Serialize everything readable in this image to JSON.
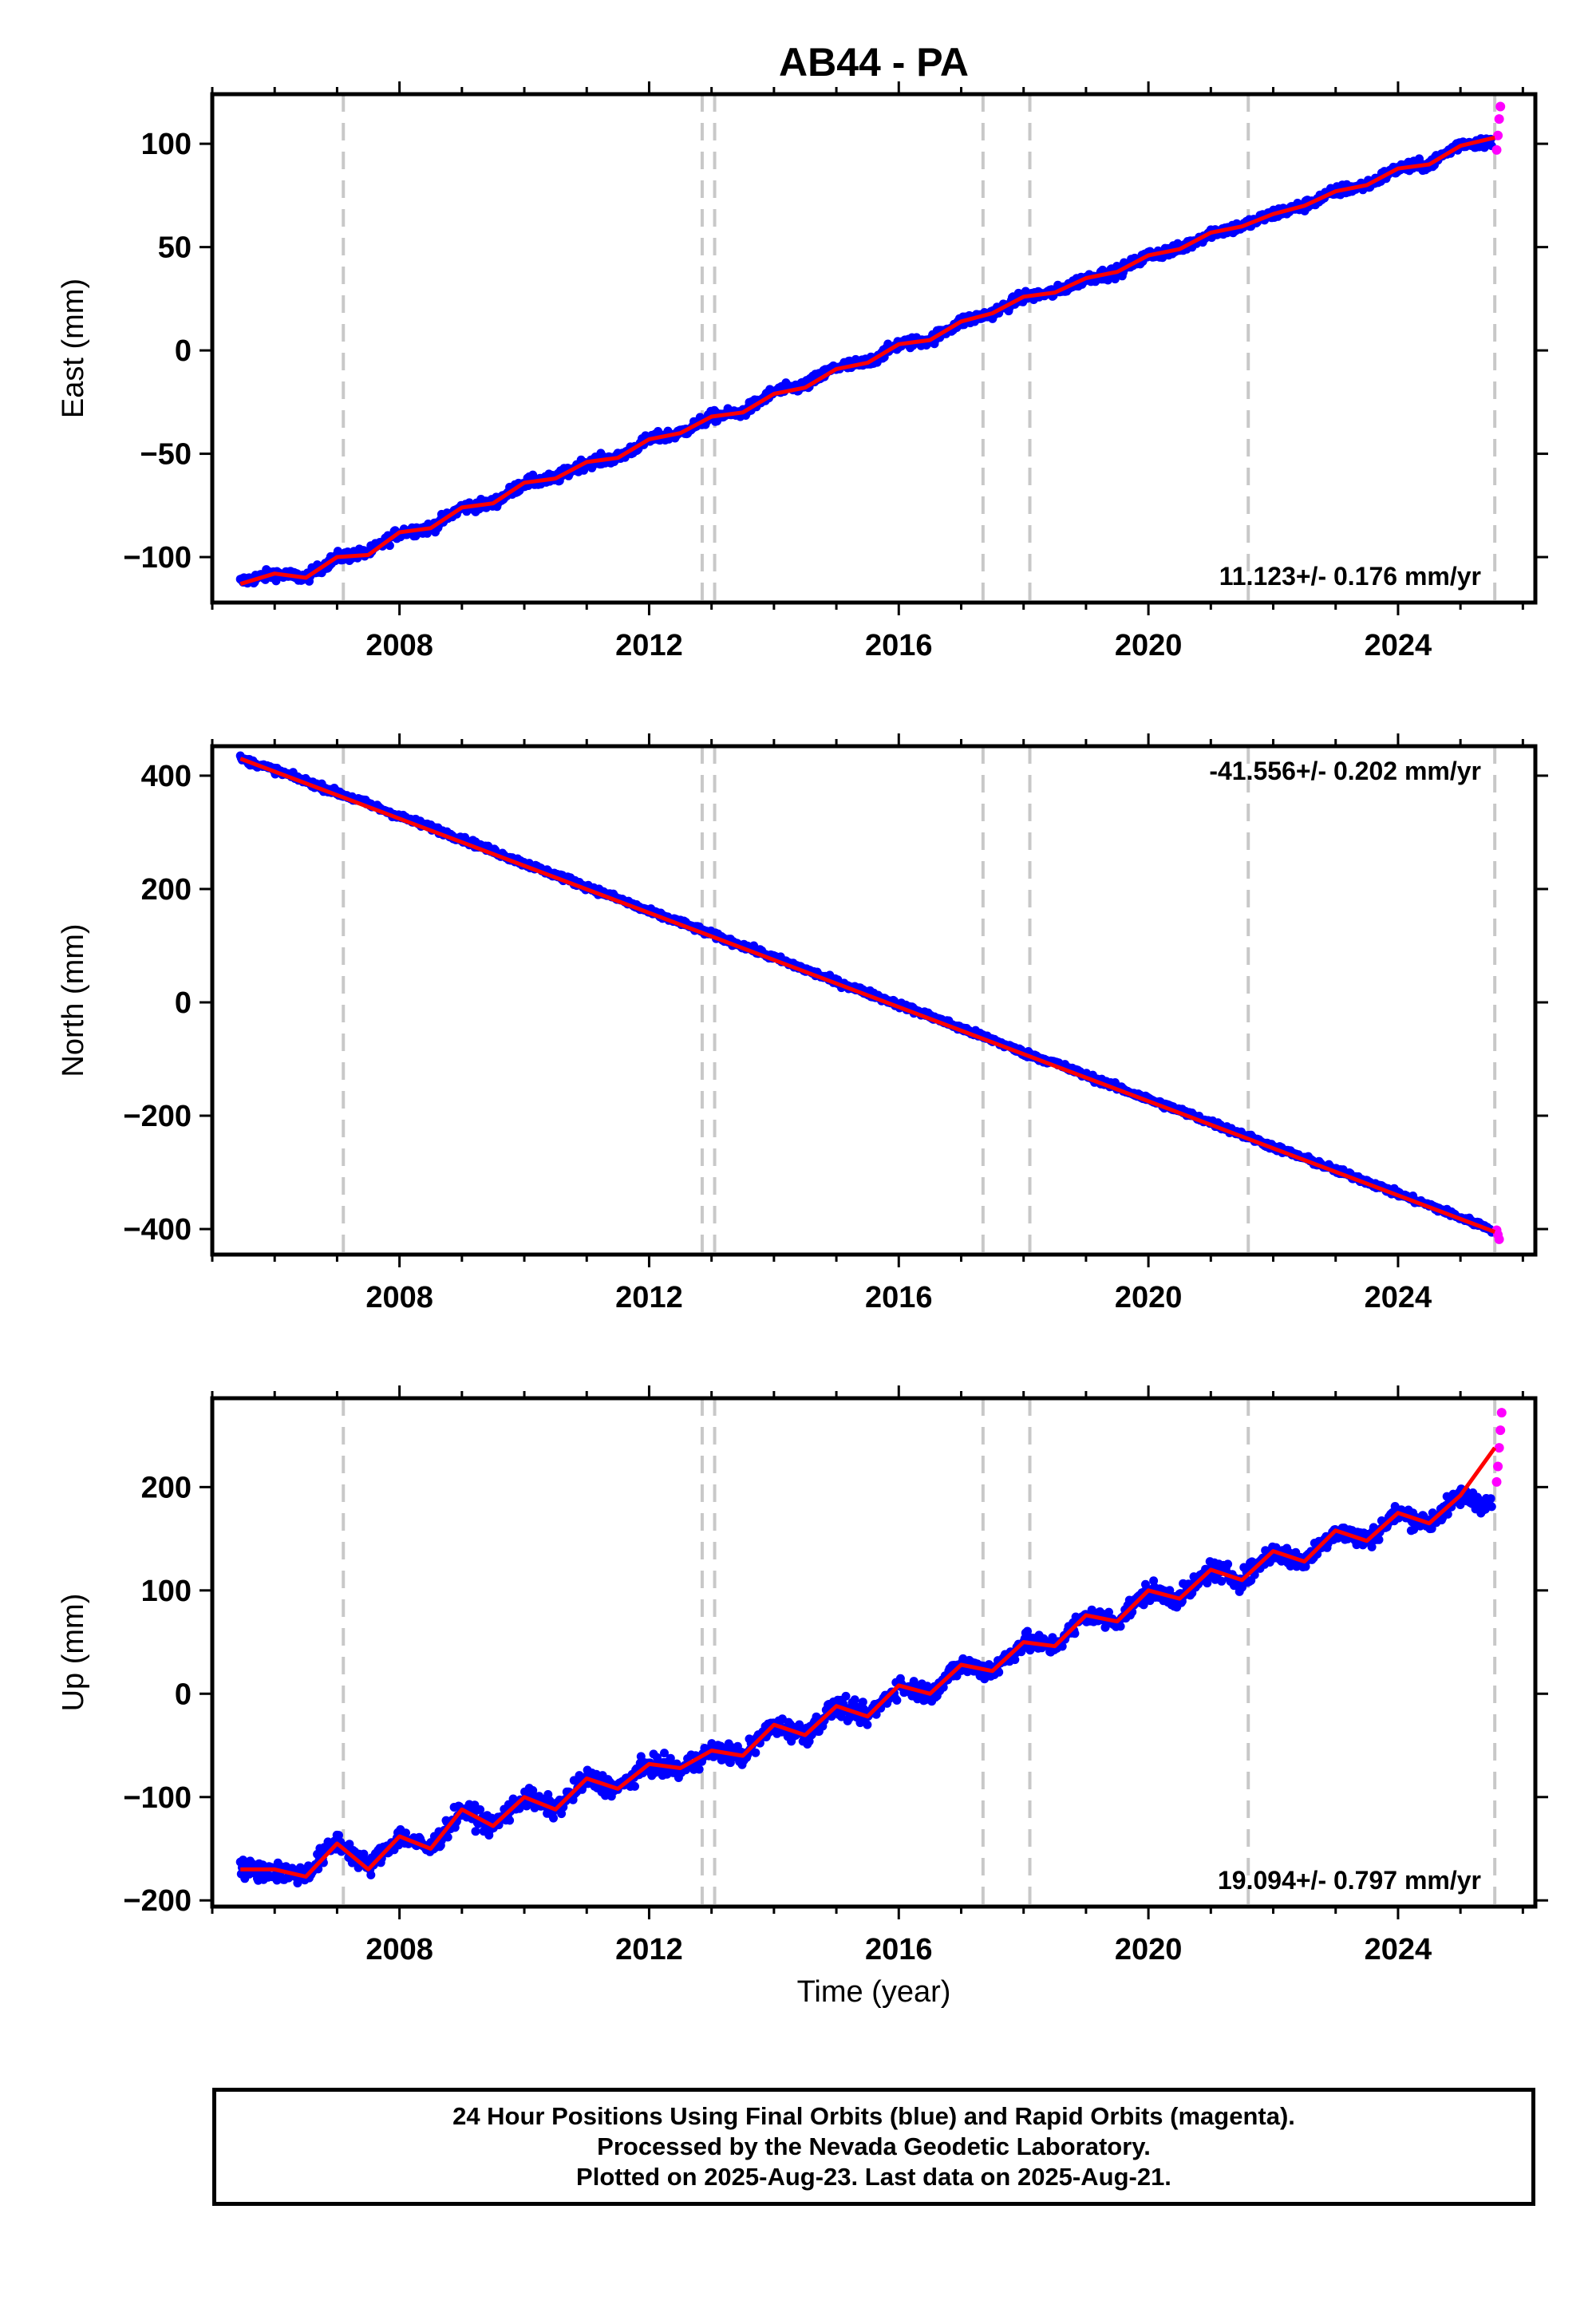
{
  "title": "AB44 - PA",
  "xlabel": "Time (year)",
  "colors": {
    "final_orbits": "#0000ff",
    "rapid_orbits": "#ff00ff",
    "model": "#ff0000",
    "event_lines": "#c8c8c8"
  },
  "chart_data": [
    {
      "type": "scatter",
      "panel": "east",
      "ylabel": "East (mm)",
      "rate_label": "11.123+/- 0.176 mm/yr",
      "rate_position": "bottom-right",
      "xlim": [
        2005.0,
        2026.2
      ],
      "ylim": [
        -122,
        124
      ],
      "xticks": [
        2008,
        2012,
        2016,
        2020,
        2024
      ],
      "yticks": [
        -100,
        -50,
        0,
        50,
        100
      ],
      "ytick_labels": [
        "−100",
        "−50",
        "0",
        "50",
        "100"
      ],
      "event_lines_x": [
        2007.1,
        2012.85,
        2013.05,
        2017.35,
        2018.1,
        2021.6,
        2025.55
      ],
      "final_orbits": {
        "x": [
          2005.45,
          2006.0,
          2006.5,
          2007.0,
          2007.5,
          2008.0,
          2008.5,
          2009.0,
          2009.5,
          2010.0,
          2010.5,
          2011.0,
          2011.5,
          2012.0,
          2012.5,
          2013.0,
          2013.5,
          2014.0,
          2014.5,
          2015.0,
          2015.5,
          2016.0,
          2016.5,
          2017.0,
          2017.5,
          2018.0,
          2018.5,
          2019.0,
          2019.5,
          2020.0,
          2020.5,
          2021.0,
          2021.5,
          2022.0,
          2022.5,
          2023.0,
          2023.5,
          2024.0,
          2024.5,
          2025.0,
          2025.5
        ],
        "y": [
          -112,
          -108,
          -110,
          -100,
          -98,
          -88,
          -86,
          -76,
          -74,
          -64,
          -62,
          -54,
          -52,
          -43,
          -40,
          -32,
          -30,
          -20,
          -17,
          -8,
          -6,
          3,
          5,
          14,
          18,
          26,
          28,
          35,
          38,
          46,
          49,
          57,
          60,
          66,
          70,
          77,
          80,
          88,
          90,
          100,
          101
        ]
      },
      "rapid_orbits": {
        "x": [
          2025.58,
          2025.6,
          2025.62,
          2025.64
        ],
        "y": [
          97,
          104,
          112,
          118
        ]
      },
      "model": {
        "x": [
          2005.45,
          2006.0,
          2006.5,
          2007.0,
          2007.5,
          2008.0,
          2008.5,
          2009.0,
          2009.5,
          2010.0,
          2010.5,
          2011.0,
          2011.5,
          2012.0,
          2012.5,
          2013.0,
          2013.5,
          2014.0,
          2014.5,
          2015.0,
          2015.5,
          2016.0,
          2016.5,
          2017.0,
          2017.5,
          2018.0,
          2018.5,
          2019.0,
          2019.5,
          2020.0,
          2020.5,
          2021.0,
          2021.5,
          2022.0,
          2022.5,
          2023.0,
          2023.5,
          2024.0,
          2024.5,
          2025.0,
          2025.55
        ],
        "y": [
          -113,
          -108,
          -110,
          -100,
          -99,
          -88,
          -86,
          -76,
          -74,
          -64,
          -62,
          -54,
          -52,
          -43,
          -40,
          -32,
          -30,
          -21,
          -18,
          -9,
          -6,
          3,
          5,
          14,
          18,
          26,
          28,
          35,
          38,
          46,
          49,
          57,
          60,
          66,
          70,
          77,
          80,
          88,
          90,
          99,
          103
        ]
      },
      "scatter_mm": 2.5
    },
    {
      "type": "scatter",
      "panel": "north",
      "ylabel": "North (mm)",
      "rate_label": "-41.556+/- 0.202 mm/yr",
      "rate_position": "top-right",
      "xlim": [
        2005.0,
        2026.2
      ],
      "ylim": [
        -445,
        452
      ],
      "xticks": [
        2008,
        2012,
        2016,
        2020,
        2024
      ],
      "yticks": [
        -400,
        -200,
        0,
        200,
        400
      ],
      "ytick_labels": [
        "−400",
        "−200",
        "0",
        "200",
        "400"
      ],
      "event_lines_x": [
        2007.1,
        2012.85,
        2013.05,
        2017.35,
        2018.1,
        2021.6,
        2025.55
      ],
      "final_orbits": {
        "x": [
          2005.45,
          2006.0,
          2006.5,
          2007.0,
          2007.5,
          2008.0,
          2008.5,
          2009.0,
          2009.5,
          2010.0,
          2010.5,
          2011.0,
          2011.5,
          2012.0,
          2012.5,
          2013.0,
          2013.5,
          2014.0,
          2014.5,
          2015.0,
          2015.5,
          2016.0,
          2016.5,
          2017.0,
          2017.5,
          2018.0,
          2018.5,
          2019.0,
          2019.5,
          2020.0,
          2020.5,
          2021.0,
          2021.5,
          2022.0,
          2022.5,
          2023.0,
          2023.5,
          2024.0,
          2024.5,
          2025.0,
          2025.5
        ],
        "y": [
          430,
          410,
          390,
          370,
          350,
          328,
          309,
          288,
          267,
          245,
          225,
          204,
          183,
          160,
          141,
          120,
          100,
          79,
          58,
          36,
          17,
          -4,
          -24,
          -46,
          -66,
          -89,
          -107,
          -129,
          -150,
          -171,
          -191,
          -212,
          -233,
          -255,
          -275,
          -296,
          -316,
          -338,
          -358,
          -380,
          -400
        ]
      },
      "rapid_orbits": {
        "x": [
          2025.58,
          2025.6,
          2025.62
        ],
        "y": [
          -402,
          -410,
          -418
        ]
      },
      "model": {
        "x": [
          2005.45,
          2025.55
        ],
        "y": [
          430,
          -405
        ]
      },
      "scatter_mm": 5
    },
    {
      "type": "scatter",
      "panel": "up",
      "ylabel": "Up (mm)",
      "rate_label": "19.094+/- 0.797 mm/yr",
      "rate_position": "bottom-right",
      "xlim": [
        2005.0,
        2026.2
      ],
      "ylim": [
        -206,
        286
      ],
      "xticks": [
        2008,
        2012,
        2016,
        2020,
        2024
      ],
      "yticks": [
        -200,
        -100,
        0,
        100,
        200
      ],
      "ytick_labels": [
        "−200",
        "−100",
        "0",
        "100",
        "200"
      ],
      "event_lines_x": [
        2007.1,
        2012.85,
        2013.05,
        2017.35,
        2018.1,
        2021.6,
        2025.55
      ],
      "final_orbits": {
        "x": [
          2005.45,
          2006.0,
          2006.5,
          2007.0,
          2007.5,
          2008.0,
          2008.5,
          2009.0,
          2009.5,
          2010.0,
          2010.5,
          2011.0,
          2011.5,
          2012.0,
          2012.5,
          2013.0,
          2013.5,
          2014.0,
          2014.5,
          2015.0,
          2015.5,
          2016.0,
          2016.5,
          2017.0,
          2017.5,
          2018.0,
          2018.5,
          2019.0,
          2019.5,
          2020.0,
          2020.5,
          2021.0,
          2021.5,
          2022.0,
          2022.5,
          2023.0,
          2023.5,
          2024.0,
          2024.5,
          2025.0,
          2025.5
        ],
        "y": [
          -170,
          -172,
          -175,
          -142,
          -168,
          -138,
          -150,
          -112,
          -128,
          -100,
          -112,
          -82,
          -92,
          -68,
          -75,
          -55,
          -60,
          -30,
          -40,
          -12,
          -22,
          8,
          0,
          28,
          22,
          50,
          46,
          76,
          70,
          100,
          92,
          120,
          110,
          138,
          128,
          158,
          148,
          175,
          165,
          192,
          182
        ]
      },
      "rapid_orbits": {
        "x": [
          2025.58,
          2025.6,
          2025.62,
          2025.64,
          2025.66
        ],
        "y": [
          205,
          220,
          238,
          255,
          272
        ]
      },
      "model": {
        "x": [
          2005.45,
          2006.0,
          2006.5,
          2007.0,
          2007.5,
          2008.0,
          2008.5,
          2009.0,
          2009.5,
          2010.0,
          2010.5,
          2011.0,
          2011.5,
          2012.0,
          2012.5,
          2013.0,
          2013.5,
          2014.0,
          2014.5,
          2015.0,
          2015.5,
          2016.0,
          2016.5,
          2017.0,
          2017.5,
          2018.0,
          2018.5,
          2019.0,
          2019.5,
          2020.0,
          2020.5,
          2021.0,
          2021.5,
          2022.0,
          2022.5,
          2023.0,
          2023.5,
          2024.0,
          2024.5,
          2025.0,
          2025.55
        ],
        "y": [
          -170,
          -170,
          -177,
          -145,
          -170,
          -138,
          -150,
          -112,
          -128,
          -100,
          -112,
          -82,
          -92,
          -68,
          -72,
          -55,
          -60,
          -30,
          -40,
          -12,
          -22,
          8,
          0,
          28,
          22,
          50,
          46,
          76,
          70,
          100,
          92,
          120,
          110,
          138,
          128,
          158,
          148,
          175,
          165,
          192,
          238
        ]
      },
      "scatter_mm": 9
    }
  ],
  "footer": {
    "line1": "24 Hour Positions Using Final Orbits (blue) and Rapid Orbits (magenta).",
    "line2": "Processed by the Nevada Geodetic Laboratory.",
    "line3": "Plotted on 2025-Aug-23. Last data on 2025-Aug-21."
  }
}
